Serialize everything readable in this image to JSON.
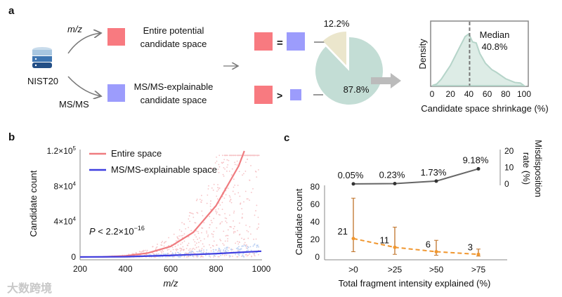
{
  "panel_labels": {
    "a": "a",
    "b": "b",
    "c": "c"
  },
  "panel_a": {
    "source": "NIST20",
    "arrow_top_label": "m/z",
    "arrow_bottom_label": "MS/MS",
    "entire_space_lines": [
      "Entire potential",
      "candidate space"
    ],
    "explainable_space_lines": [
      "MS/MS-explainable",
      "candidate space"
    ],
    "equal_sign": "=",
    "greater_sign": ">",
    "colors": {
      "entire": "#f87a80",
      "explainable": "#9c9cfc",
      "pie_main": "#c3ddd5",
      "pie_minor": "#ebe6cc"
    }
  },
  "watermark": "大数跨境",
  "chart_data": [
    {
      "type": "pie",
      "id": "pie",
      "slices": [
        {
          "name": "equal",
          "value": 12.2,
          "label": "12.2%"
        },
        {
          "name": "greater",
          "value": 87.8,
          "label": "87.8%"
        }
      ]
    },
    {
      "type": "area",
      "id": "density",
      "xlabel": "Candidate space shrinkage (%)",
      "ylabel": "Density",
      "xlim": [
        0,
        100
      ],
      "xticks": [
        "0",
        "20",
        "40",
        "60",
        "80",
        "100"
      ],
      "x": [
        0,
        5,
        10,
        20,
        30,
        36,
        40,
        44,
        48,
        52,
        58,
        65,
        70,
        80,
        90,
        96,
        100
      ],
      "y": [
        0.0,
        0.03,
        0.12,
        0.38,
        0.72,
        0.92,
        0.97,
        0.82,
        0.8,
        0.6,
        0.42,
        0.3,
        0.25,
        0.13,
        0.06,
        0.05,
        0.0
      ],
      "median": 40.8,
      "annotation": [
        "Median",
        "40.8%"
      ]
    },
    {
      "type": "scatter",
      "id": "scatter",
      "xlabel": "m/z",
      "ylabel": "Candidate count",
      "xlim": [
        200,
        1000
      ],
      "ylim": [
        0,
        120000
      ],
      "xticks": [
        "200",
        "400",
        "600",
        "800",
        "1000"
      ],
      "yticks": [
        {
          "base": "0",
          "exp": ""
        },
        {
          "base": "4×10",
          "exp": "4"
        },
        {
          "base": "8×10",
          "exp": "4"
        },
        {
          "base": "1.2×10",
          "exp": "5"
        }
      ],
      "series": [
        {
          "name": "Entire space",
          "color": "#ef7b7f",
          "fit_x": [
            200,
            300,
            400,
            500,
            600,
            700,
            800,
            900,
            925
          ],
          "fit_y": [
            0,
            100,
            1200,
            4500,
            12000,
            28000,
            58000,
            103000,
            120000
          ]
        },
        {
          "name": "MS/MS-explainable space",
          "color": "#3f3fe0",
          "fit_x": [
            200,
            400,
            600,
            800,
            1000
          ],
          "fit_y": [
            0,
            300,
            1800,
            3800,
            6500
          ]
        }
      ],
      "annotation": {
        "prefix": "P",
        "text": " < 2.2×10",
        "exp": "−16"
      }
    },
    {
      "type": "line",
      "id": "fragments",
      "xlabel": "Total fragment intensity explained (%)",
      "categories": [
        ">0",
        ">25",
        ">50",
        ">75"
      ],
      "left_axis": {
        "label": "Candidate count",
        "ylim": [
          0,
          80
        ],
        "yticks": [
          "0",
          "20",
          "40",
          "60",
          "80"
        ]
      },
      "right_axis": {
        "label_lines": [
          "Misdisposition",
          "rate (%)"
        ],
        "ylim": [
          0,
          20
        ],
        "yticks": [
          "0",
          "10",
          "20"
        ]
      },
      "series": [
        {
          "name": "Candidate count",
          "color": "#f0962e",
          "values": [
            21,
            11,
            6,
            3
          ],
          "labels": [
            "21",
            "11",
            "6",
            "3"
          ],
          "err_low": [
            6,
            3,
            2,
            1
          ],
          "err_high": [
            67,
            34,
            19,
            9
          ]
        },
        {
          "name": "Misdisposition rate",
          "color": "#555555",
          "values": [
            0.05,
            0.23,
            1.73,
            9.18
          ],
          "labels": [
            "0.05%",
            "0.23%",
            "1.73%",
            "9.18%"
          ]
        }
      ]
    }
  ]
}
